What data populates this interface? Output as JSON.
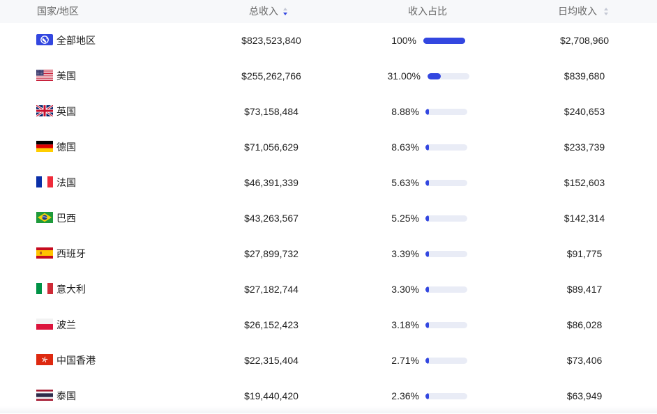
{
  "header": {
    "country": "国家/地区",
    "revenue": "总收入",
    "share": "收入占比",
    "daily": "日均收入"
  },
  "colors": {
    "accent": "#3347e0",
    "track": "#e9ecf6",
    "header_bg": "#f7f8fa"
  },
  "rows": [
    {
      "flag": "globe-icon",
      "name": "全部地区",
      "revenue": "$823,523,840",
      "share_text": "100%",
      "share": 1.0,
      "daily": "$2,708,960"
    },
    {
      "flag": "flag-us-icon",
      "name": "美国",
      "revenue": "$255,262,766",
      "share_text": "31.00%",
      "share": 0.31,
      "daily": "$839,680"
    },
    {
      "flag": "flag-uk-icon",
      "name": "英国",
      "revenue": "$73,158,484",
      "share_text": "8.88%",
      "share": 0.0888,
      "daily": "$240,653"
    },
    {
      "flag": "flag-de-icon",
      "name": "德国",
      "revenue": "$71,056,629",
      "share_text": "8.63%",
      "share": 0.0863,
      "daily": "$233,739"
    },
    {
      "flag": "flag-fr-icon",
      "name": "法国",
      "revenue": "$46,391,339",
      "share_text": "5.63%",
      "share": 0.0563,
      "daily": "$152,603"
    },
    {
      "flag": "flag-br-icon",
      "name": "巴西",
      "revenue": "$43,263,567",
      "share_text": "5.25%",
      "share": 0.0525,
      "daily": "$142,314"
    },
    {
      "flag": "flag-es-icon",
      "name": "西班牙",
      "revenue": "$27,899,732",
      "share_text": "3.39%",
      "share": 0.0339,
      "daily": "$91,775"
    },
    {
      "flag": "flag-it-icon",
      "name": "意大利",
      "revenue": "$27,182,744",
      "share_text": "3.30%",
      "share": 0.033,
      "daily": "$89,417"
    },
    {
      "flag": "flag-pl-icon",
      "name": "波兰",
      "revenue": "$26,152,423",
      "share_text": "3.18%",
      "share": 0.0318,
      "daily": "$86,028"
    },
    {
      "flag": "flag-hk-icon",
      "name": "中国香港",
      "revenue": "$22,315,404",
      "share_text": "2.71%",
      "share": 0.0271,
      "daily": "$73,406"
    },
    {
      "flag": "flag-th-icon",
      "name": "泰国",
      "revenue": "$19,440,420",
      "share_text": "2.36%",
      "share": 0.0236,
      "daily": "$63,949"
    }
  ]
}
